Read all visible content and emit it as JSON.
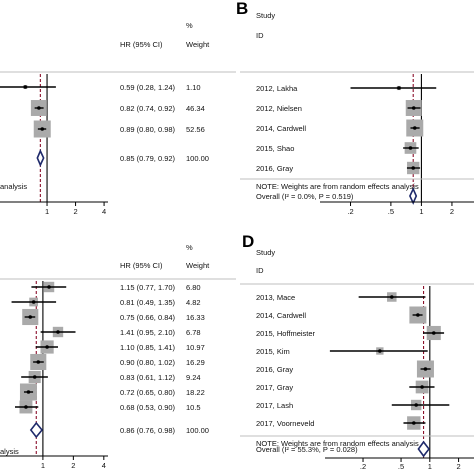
{
  "colors": {
    "box": "#aaaaaa",
    "line": "#000000",
    "null_line": "#000000",
    "overall_line": "#8b0f2a",
    "diamond": "#1f2a6b",
    "separator": "#bfbfbf"
  },
  "chart_data": [
    {
      "panel": "A",
      "panel_label": "",
      "type": "forest",
      "scale": "log",
      "header": {
        "study": "",
        "id": "",
        "ci": "HR (95% CI)",
        "weight_pct": "%",
        "weight": "Weight"
      },
      "studies": [
        {
          "name": "",
          "hr": 0.59,
          "lo": 0.28,
          "hi": 1.24,
          "weight": 1.1,
          "ci_text": "0.59 (0.28, 1.24)",
          "weight_text": "1.10"
        },
        {
          "name": "",
          "hr": 0.82,
          "lo": 0.74,
          "hi": 0.92,
          "weight": 46.34,
          "ci_text": "0.82 (0.74, 0.92)",
          "weight_text": "46.34"
        },
        {
          "name": "",
          "hr": 0.89,
          "lo": 0.8,
          "hi": 0.98,
          "weight": 52.56,
          "ci_text": "0.89 (0.80, 0.98)",
          "weight_text": "52.56"
        }
      ],
      "overall": {
        "label": "",
        "hr": 0.85,
        "lo": 0.79,
        "hi": 0.92,
        "ci_text": "0.85 (0.79, 0.92)",
        "weight_text": "100.00"
      },
      "note": "analysis",
      "ticks": [
        {
          "value": 1,
          "label": "1"
        },
        {
          "value": 2,
          "label": "2"
        },
        {
          "value": 4,
          "label": "4"
        }
      ]
    },
    {
      "panel": "B",
      "panel_label": "B",
      "type": "forest",
      "scale": "log",
      "header": {
        "study": "Study",
        "id": "ID",
        "ci": "",
        "weight_pct": "",
        "weight": ""
      },
      "studies": [
        {
          "name": "2012, Lakha",
          "hr": 0.6,
          "lo": 0.2,
          "hi": 1.4,
          "weight": 2
        },
        {
          "name": "2012, Nielsen",
          "hr": 0.84,
          "lo": 0.73,
          "hi": 0.98,
          "weight": 30
        },
        {
          "name": "2014, Cardwell",
          "hr": 0.86,
          "lo": 0.78,
          "hi": 0.96,
          "weight": 34
        },
        {
          "name": "2015, Shao",
          "hr": 0.78,
          "lo": 0.66,
          "hi": 0.94,
          "weight": 16
        },
        {
          "name": "2016, Gray",
          "hr": 0.83,
          "lo": 0.72,
          "hi": 0.97,
          "weight": 18
        }
      ],
      "overall": {
        "label": "Overall  (I² = 0.0%, P = 0.519)",
        "hr": 0.83,
        "lo": 0.77,
        "hi": 0.89
      },
      "note": "NOTE: Weights are from random effects analysis",
      "ticks": [
        {
          "value": 0.2,
          "label": ".2"
        },
        {
          "value": 0.5,
          "label": ".5"
        },
        {
          "value": 1,
          "label": "1"
        },
        {
          "value": 2,
          "label": "2"
        }
      ]
    },
    {
      "panel": "C",
      "panel_label": "",
      "type": "forest",
      "scale": "log",
      "header": {
        "study": "",
        "id": "",
        "ci": "HR (95% CI)",
        "weight_pct": "%",
        "weight": "Weight"
      },
      "studies": [
        {
          "name": "",
          "hr": 1.15,
          "lo": 0.77,
          "hi": 1.7,
          "weight": 6.8,
          "ci_text": "1.15 (0.77, 1.70)",
          "weight_text": "6.80"
        },
        {
          "name": "",
          "hr": 0.81,
          "lo": 0.49,
          "hi": 1.35,
          "weight": 4.82,
          "ci_text": "0.81 (0.49, 1.35)",
          "weight_text": "4.82"
        },
        {
          "name": "",
          "hr": 0.75,
          "lo": 0.66,
          "hi": 0.84,
          "weight": 16.33,
          "ci_text": "0.75 (0.66, 0.84)",
          "weight_text": "16.33"
        },
        {
          "name": "",
          "hr": 1.41,
          "lo": 0.95,
          "hi": 2.1,
          "weight": 6.78,
          "ci_text": "1.41 (0.95, 2.10)",
          "weight_text": "6.78"
        },
        {
          "name": "",
          "hr": 1.1,
          "lo": 0.85,
          "hi": 1.41,
          "weight": 10.97,
          "ci_text": "1.10 (0.85, 1.41)",
          "weight_text": "10.97"
        },
        {
          "name": "",
          "hr": 0.9,
          "lo": 0.8,
          "hi": 1.02,
          "weight": 16.29,
          "ci_text": "0.90 (0.80, 1.02)",
          "weight_text": "16.29"
        },
        {
          "name": "",
          "hr": 0.83,
          "lo": 0.61,
          "hi": 1.12,
          "weight": 9.24,
          "ci_text": "0.83 (0.61, 1.12)",
          "weight_text": "9.24"
        },
        {
          "name": "",
          "hr": 0.72,
          "lo": 0.65,
          "hi": 0.8,
          "weight": 18.22,
          "ci_text": "0.72 (0.65, 0.80)",
          "weight_text": "18.22"
        },
        {
          "name": "",
          "hr": 0.68,
          "lo": 0.53,
          "hi": 0.9,
          "weight": 10.5,
          "ci_text": "0.68 (0.53, 0.90)",
          "weight_text": "10.5"
        }
      ],
      "overall": {
        "label": "",
        "hr": 0.86,
        "lo": 0.76,
        "hi": 0.98,
        "ci_text": "0.86 (0.76, 0.98)",
        "weight_text": "100.00"
      },
      "note": "alysis",
      "ticks": [
        {
          "value": 1,
          "label": "1"
        },
        {
          "value": 2,
          "label": "2"
        },
        {
          "value": 4,
          "label": "4"
        }
      ]
    },
    {
      "panel": "D",
      "panel_label": "D",
      "type": "forest",
      "scale": "log",
      "header": {
        "study": "Study",
        "id": "ID",
        "ci": "",
        "weight_pct": "",
        "weight": ""
      },
      "studies": [
        {
          "name": "2013, Mace",
          "hr": 0.4,
          "lo": 0.18,
          "hi": 0.9,
          "weight": 5
        },
        {
          "name": "2014, Cardwell",
          "hr": 0.75,
          "lo": 0.66,
          "hi": 0.84,
          "weight": 16
        },
        {
          "name": "2015, Hoffmeister",
          "hr": 1.1,
          "lo": 0.85,
          "hi": 1.41,
          "weight": 11
        },
        {
          "name": "2015, Kim",
          "hr": 0.3,
          "lo": 0.09,
          "hi": 0.95,
          "weight": 3
        },
        {
          "name": "2016, Gray",
          "hr": 0.9,
          "lo": 0.8,
          "hi": 1.02,
          "weight": 16
        },
        {
          "name": "2017, Gray",
          "hr": 0.83,
          "lo": 0.61,
          "hi": 1.12,
          "weight": 9
        },
        {
          "name": "2017, Lash",
          "hr": 0.72,
          "lo": 0.4,
          "hi": 1.6,
          "weight": 6
        },
        {
          "name": "2017, Voorneveld",
          "hr": 0.68,
          "lo": 0.53,
          "hi": 0.9,
          "weight": 10
        }
      ],
      "overall": {
        "label": "Overall  (I² = 55.3%, P = 0.028)",
        "hr": 0.86,
        "lo": 0.76,
        "hi": 0.98
      },
      "note": "NOTE: Weights are from random effects analysis",
      "ticks": [
        {
          "value": 0.2,
          "label": ".2"
        },
        {
          "value": 0.5,
          "label": ".5"
        },
        {
          "value": 1,
          "label": "1"
        },
        {
          "value": 2,
          "label": "2"
        }
      ]
    }
  ]
}
